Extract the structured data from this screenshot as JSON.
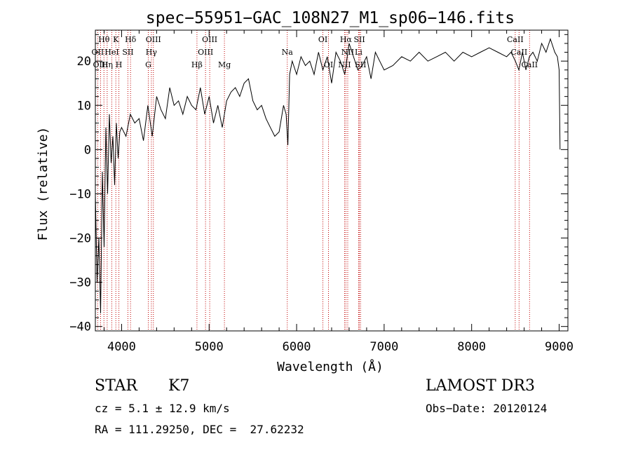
{
  "chart_data": {
    "type": "line",
    "title": "spec−55951−GAC_108N27_M1_sp06−146.fits",
    "xlabel": "Wavelength (Å)",
    "ylabel": "Flux (relative)",
    "xlim": [
      3700,
      9100
    ],
    "ylim": [
      -41,
      27
    ],
    "xticks": [
      {
        "value": 4000,
        "label": "4000"
      },
      {
        "value": 5000,
        "label": "5000"
      },
      {
        "value": 6000,
        "label": "6000"
      },
      {
        "value": 7000,
        "label": "7000"
      },
      {
        "value": 8000,
        "label": "8000"
      },
      {
        "value": 9000,
        "label": "9000"
      }
    ],
    "yticks": [
      {
        "value": 20,
        "label": "20"
      },
      {
        "value": 10,
        "label": "10"
      },
      {
        "value": 0,
        "label": "0"
      },
      {
        "value": -10,
        "label": "−10"
      },
      {
        "value": -20,
        "label": "−20"
      },
      {
        "value": -30,
        "label": "−30"
      },
      {
        "value": -40,
        "label": "−40"
      }
    ],
    "series": [
      {
        "name": "spectrum",
        "x": [
          3700,
          3720,
          3740,
          3760,
          3780,
          3800,
          3820,
          3840,
          3860,
          3880,
          3900,
          3920,
          3940,
          3960,
          3980,
          4000,
          4050,
          4100,
          4150,
          4200,
          4250,
          4300,
          4350,
          4400,
          4450,
          4500,
          4550,
          4600,
          4650,
          4700,
          4750,
          4800,
          4850,
          4900,
          4950,
          5000,
          5050,
          5100,
          5150,
          5200,
          5250,
          5300,
          5350,
          5400,
          5450,
          5500,
          5550,
          5600,
          5650,
          5700,
          5750,
          5800,
          5850,
          5880,
          5900,
          5920,
          5950,
          6000,
          6050,
          6100,
          6150,
          6200,
          6250,
          6300,
          6350,
          6400,
          6450,
          6500,
          6550,
          6600,
          6650,
          6700,
          6750,
          6800,
          6850,
          6900,
          6950,
          7000,
          7100,
          7200,
          7300,
          7400,
          7500,
          7600,
          7700,
          7800,
          7900,
          8000,
          8100,
          8200,
          8300,
          8400,
          8450,
          8500,
          8540,
          8580,
          8620,
          8660,
          8700,
          8750,
          8800,
          8850,
          8900,
          8950,
          8980,
          9000,
          9010
        ],
        "values": [
          -10,
          -30,
          -20,
          -37,
          -5,
          -22,
          5,
          -10,
          8,
          -3,
          3,
          -8,
          6,
          -2,
          4,
          5,
          3,
          8,
          6,
          7,
          2,
          10,
          3,
          12,
          9,
          7,
          14,
          10,
          11,
          8,
          12,
          10,
          9,
          14,
          8,
          12,
          6,
          10,
          5,
          11,
          13,
          14,
          12,
          15,
          16,
          11,
          9,
          10,
          7,
          5,
          3,
          4,
          10,
          8,
          1,
          17,
          20,
          17,
          21,
          19,
          20,
          17,
          22,
          18,
          21,
          15,
          22,
          20,
          17,
          24,
          21,
          18,
          19,
          21,
          16,
          22,
          20,
          18,
          19,
          21,
          20,
          22,
          20,
          21,
          22,
          20,
          22,
          21,
          22,
          23,
          22,
          21,
          22,
          20,
          18,
          22,
          18,
          21,
          22,
          20,
          24,
          22,
          25,
          22,
          21,
          18,
          0
        ]
      }
    ],
    "emission_lines": [
      {
        "name": "Hθ",
        "wavelength": 3798,
        "label_row": 1
      },
      {
        "name": "OII",
        "wavelength": 3727,
        "label_row": 2
      },
      {
        "name": "OIII",
        "wavelength": 3760,
        "label_row": 3
      },
      {
        "name": "Hη",
        "wavelength": 3835,
        "label_row": 3
      },
      {
        "name": "HeI",
        "wavelength": 3888,
        "label_row": 2
      },
      {
        "name": "K",
        "wavelength": 3934,
        "label_row": 1
      },
      {
        "name": "H",
        "wavelength": 3969,
        "label_row": 3
      },
      {
        "name": "SII",
        "wavelength": 4072,
        "label_row": 2
      },
      {
        "name": "Hδ",
        "wavelength": 4102,
        "label_row": 1
      },
      {
        "name": "OIII",
        "wavelength": 4363,
        "label_row": 1
      },
      {
        "name": "Hγ",
        "wavelength": 4340,
        "label_row": 2
      },
      {
        "name": "G",
        "wavelength": 4305,
        "label_row": 3
      },
      {
        "name": "OIII",
        "wavelength": 5007,
        "label_row": 1
      },
      {
        "name": "OIII",
        "wavelength": 4959,
        "label_row": 2
      },
      {
        "name": "Hβ",
        "wavelength": 4861,
        "label_row": 3
      },
      {
        "name": "Mg",
        "wavelength": 5175,
        "label_row": 3
      },
      {
        "name": "Na",
        "wavelength": 5893,
        "label_row": 2
      },
      {
        "name": "OI",
        "wavelength": 6300,
        "label_row": 1
      },
      {
        "name": "OI",
        "wavelength": 6364,
        "label_row": 3
      },
      {
        "name": "Hα",
        "wavelength": 6563,
        "label_row": 1
      },
      {
        "name": "NII",
        "wavelength": 6548,
        "label_row": 3
      },
      {
        "name": "NII",
        "wavelength": 6584,
        "label_row": 2
      },
      {
        "name": "SII",
        "wavelength": 6717,
        "label_row": 1
      },
      {
        "name": "SII",
        "wavelength": 6731,
        "label_row": 3
      },
      {
        "name": "Li",
        "wavelength": 6708,
        "label_row": 2
      },
      {
        "name": "CaII",
        "wavelength": 8498,
        "label_row": 1
      },
      {
        "name": "CaII",
        "wavelength": 8542,
        "label_row": 2
      },
      {
        "name": "CaII",
        "wavelength": 8662,
        "label_row": 3
      }
    ]
  },
  "info": {
    "object_class": "STAR",
    "subclass": "K7",
    "survey": "LAMOST DR3",
    "redshift": "cz = 5.1 ± 12.9 km/s",
    "obs_date": "Obs−Date: 20120124",
    "coords": "RA = 111.29250, DEC =  27.62232"
  },
  "colors": {
    "line_marker": "#c00000",
    "spectrum": "#000000"
  }
}
